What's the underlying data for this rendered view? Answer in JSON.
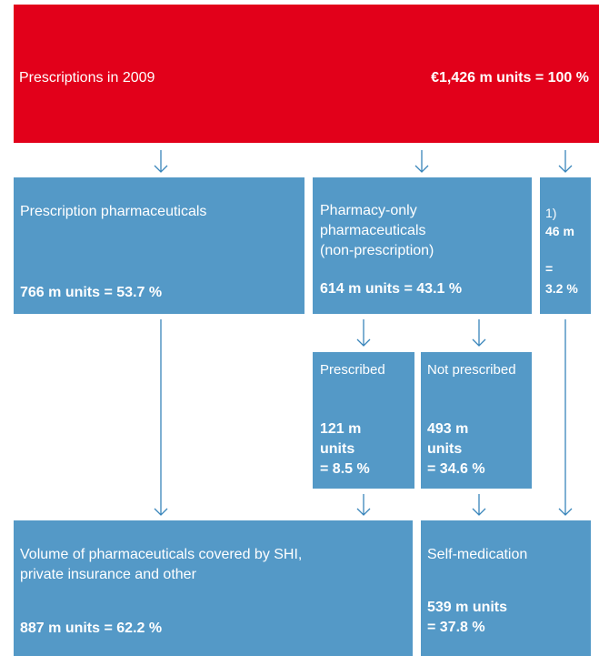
{
  "header": {
    "title": "Prescriptions in 2009",
    "value": "€1,426 m units = 100 %"
  },
  "nodes": [
    {
      "label": [
        "Prescription pharmaceuticals"
      ],
      "value": [
        "766 m units = 53.7 %"
      ]
    },
    {
      "label": [
        "Pharmacy-only",
        "pharmaceuticals",
        "(non-prescription)"
      ],
      "value": [
        "614 m units = 43.1 %"
      ]
    },
    {
      "label": [
        "1)"
      ],
      "value": [
        "46 m",
        "=",
        "3.2 %"
      ]
    },
    {
      "label": [
        "Prescribed"
      ],
      "value": [
        "121 m",
        "units",
        "= 8.5 %"
      ]
    },
    {
      "label": [
        "Not prescribed"
      ],
      "value": [
        "493 m",
        "units",
        "= 34.6 %"
      ]
    },
    {
      "label": [
        "Volume of pharmaceuticals covered by SHI,",
        "private insurance and other"
      ],
      "value": [
        "887 m units = 62.2 %"
      ]
    },
    {
      "label": [
        "Self-medication"
      ],
      "value": [
        "539 m units",
        "= 37.8 %"
      ]
    }
  ]
}
